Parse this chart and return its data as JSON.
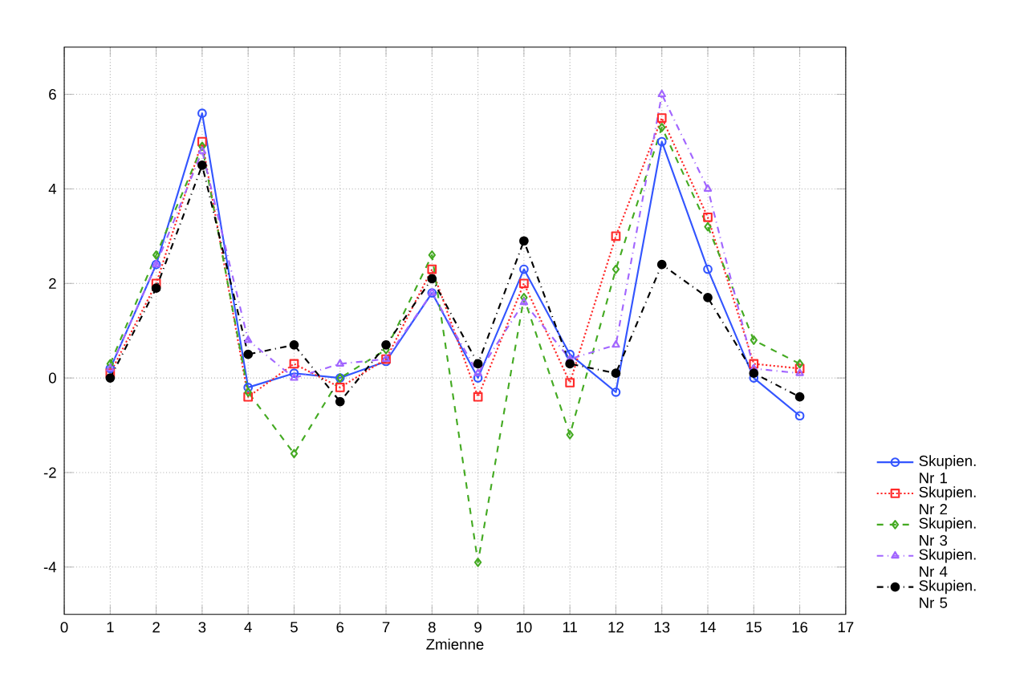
{
  "chart_data": {
    "type": "line",
    "xlabel": "Zmienne",
    "x": [
      1,
      2,
      3,
      4,
      5,
      6,
      7,
      8,
      9,
      10,
      11,
      12,
      13,
      14,
      15,
      16
    ],
    "xlim": [
      0,
      17
    ],
    "xticks": [
      0,
      1,
      2,
      3,
      4,
      5,
      6,
      7,
      8,
      9,
      10,
      11,
      12,
      13,
      14,
      15,
      16,
      17
    ],
    "ylim": [
      -5,
      7
    ],
    "yticks": [
      -4,
      -2,
      0,
      2,
      4,
      6
    ],
    "grid": true,
    "legend": "right",
    "series": [
      {
        "name": "Skupien. Nr 1",
        "color": "#3355ff",
        "marker": "circle",
        "line_style": "solid",
        "values": [
          0.2,
          2.4,
          5.6,
          -0.2,
          0.1,
          0.0,
          0.35,
          1.8,
          0.0,
          2.3,
          0.5,
          -0.3,
          5.0,
          2.3,
          0.0,
          -0.8
        ]
      },
      {
        "name": "Skupien. Nr 2",
        "color": "#ff2a2a",
        "marker": "square",
        "line_style": "dotted",
        "values": [
          0.1,
          2.0,
          5.0,
          -0.4,
          0.3,
          -0.2,
          0.4,
          2.3,
          -0.4,
          2.0,
          -0.1,
          3.0,
          5.5,
          3.4,
          0.3,
          0.2
        ]
      },
      {
        "name": "Skupien. Nr 3",
        "color": "#44aa22",
        "marker": "diamond",
        "line_style": "dashed",
        "values": [
          0.3,
          2.6,
          4.9,
          -0.3,
          -1.6,
          0.0,
          0.6,
          2.6,
          -3.9,
          1.7,
          -1.2,
          2.3,
          5.3,
          3.2,
          0.8,
          0.3
        ]
      },
      {
        "name": "Skupien. Nr 4",
        "color": "#a266ff",
        "marker": "triangle",
        "line_style": "dashdot",
        "values": [
          0.2,
          2.4,
          4.8,
          0.8,
          0.0,
          0.3,
          0.4,
          1.8,
          0.1,
          1.6,
          0.4,
          0.7,
          6.0,
          4.0,
          0.2,
          0.1
        ]
      },
      {
        "name": "Skupien. Nr 5",
        "color": "#000000",
        "marker": "filled circle",
        "line_style": "dashdot",
        "values": [
          0.0,
          1.9,
          4.5,
          0.5,
          0.7,
          -0.5,
          0.7,
          2.1,
          0.3,
          2.9,
          0.3,
          0.1,
          2.4,
          1.7,
          0.1,
          -0.4
        ]
      }
    ]
  }
}
